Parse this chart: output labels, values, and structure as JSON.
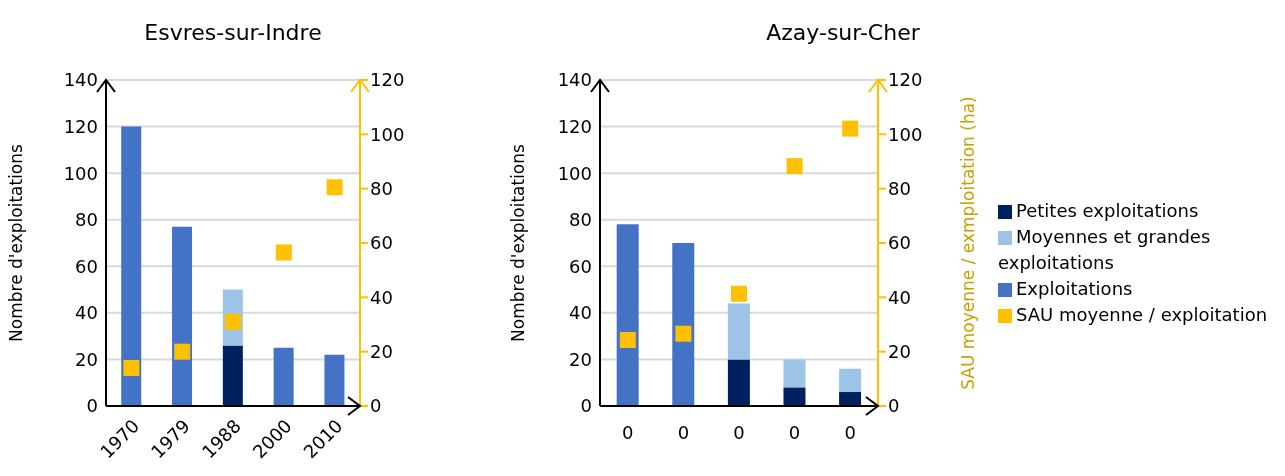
{
  "chart_data": [
    {
      "type": "bar",
      "title": "Esvres-sur-Indre",
      "ylabel": "Nombre d'exploitations",
      "categories": [
        "1970",
        "1979",
        "1988",
        "2000",
        "2010"
      ],
      "stacked": true,
      "series": [
        {
          "color": "#002060",
          "values": [
            null,
            null,
            26,
            null,
            null
          ]
        },
        {
          "color": "#9dc3e6",
          "values": [
            null,
            null,
            24,
            null,
            null
          ]
        },
        {
          "color": "#4472c4",
          "values": [
            120,
            77,
            null,
            25,
            22
          ]
        },
        {
          "type": "scatter",
          "axis": "y2",
          "color": "#ffc000",
          "values": [
            14,
            20,
            31,
            56.5,
            80.5
          ]
        }
      ],
      "ylim": [
        0,
        140
      ],
      "yticks": [
        0,
        20,
        40,
        60,
        80,
        100,
        120,
        140
      ],
      "y2lim": [
        0,
        120
      ],
      "y2ticks": [
        0,
        20,
        40,
        60,
        80,
        100,
        120
      ],
      "grid": "y",
      "legend": false,
      "marker": "square"
    },
    {
      "type": "bar",
      "title": "Azay-sur-Cher",
      "ylabel": "Nombre d'exploitations",
      "y2label": "SAU moyenne / exmploitation (ha)",
      "categories": [
        "0",
        "0",
        "0",
        "0",
        "0"
      ],
      "stacked": true,
      "series": [
        {
          "name": "Petites exploitations",
          "color": "#002060",
          "values": [
            null,
            null,
            20,
            8,
            6
          ]
        },
        {
          "name": "Moyennes et grandes exploitations",
          "color": "#9dc3e6",
          "values": [
            null,
            null,
            24,
            12,
            10
          ]
        },
        {
          "name": "Exploitations",
          "color": "#4472c4",
          "values": [
            78,
            70,
            null,
            null,
            null
          ]
        },
        {
          "type": "scatter",
          "axis": "y2",
          "name": "SAU moyenne / exploitation",
          "color": "#ffc000",
          "values": [
            24.3,
            26.6,
            41.3,
            88.3,
            102.1
          ]
        }
      ],
      "ylim": [
        0,
        140
      ],
      "yticks": [
        0,
        20,
        40,
        60,
        80,
        100,
        120,
        140
      ],
      "y2lim": [
        0,
        120
      ],
      "y2ticks": [
        0,
        20,
        40,
        60,
        80,
        100,
        120
      ],
      "grid": "y",
      "legend": "right",
      "marker": "square"
    }
  ]
}
